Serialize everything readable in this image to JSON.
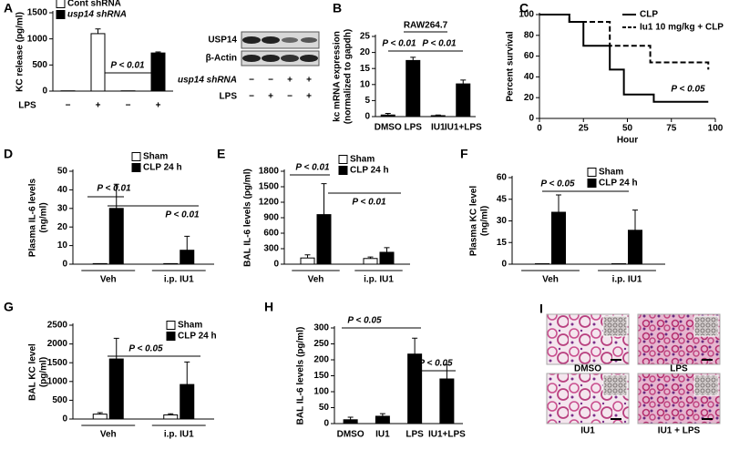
{
  "chart_data": [
    {
      "panel": "A",
      "type": "bar",
      "ylabel": [
        "KC release (pg/ml)"
      ],
      "categories": [
        "−",
        "+",
        "−",
        "+"
      ],
      "x_row_label": "LPS",
      "series": [
        {
          "name": "Cont shRNA",
          "color": "#ffffff",
          "values": [
            5,
            1100,
            null,
            null
          ],
          "errors": [
            null,
            90,
            null,
            null
          ]
        },
        {
          "name": "usp14 shRNA",
          "color": "#000000",
          "values": [
            null,
            null,
            5,
            730
          ],
          "errors": [
            null,
            null,
            null,
            20
          ]
        }
      ],
      "ylim": [
        0,
        1500
      ],
      "yticks": [
        0,
        500,
        1000,
        1500
      ],
      "legend": "upper left",
      "annotations": [
        "P < 0.01"
      ]
    },
    {
      "panel": "B",
      "type": "bar",
      "title": "RAW264.7",
      "ylabel": [
        "kc mRNA expression",
        "(normalized to gapdh)"
      ],
      "categories": [
        "DMSO",
        "LPS",
        "IU1",
        "IU1+LPS"
      ],
      "values": [
        0.5,
        17.5,
        0.3,
        10.2
      ],
      "errors": [
        0.5,
        1,
        0.2,
        1.2
      ],
      "color": "#000000",
      "ylim": [
        0,
        25
      ],
      "yticks": [
        0,
        5,
        10,
        15,
        20,
        25
      ],
      "annotations": [
        "P < 0.01",
        "P < 0.01"
      ]
    },
    {
      "panel": "C",
      "type": "line",
      "xlabel": "Hour",
      "ylabel": [
        "Percent survival"
      ],
      "series": [
        {
          "name": "CLP",
          "color": "#000000",
          "dash": false,
          "x": [
            0,
            17,
            17,
            25,
            25,
            40,
            40,
            48,
            48,
            65,
            65,
            96
          ],
          "values": [
            100,
            100,
            93,
            93,
            70,
            70,
            47,
            47,
            23,
            23,
            16,
            16
          ]
        },
        {
          "name": "Iu1 10 mg/kg + CLP",
          "color": "#000000",
          "dash": true,
          "x": [
            0,
            17,
            17,
            40,
            40,
            63,
            63,
            96,
            96
          ],
          "values": [
            100,
            100,
            93,
            93,
            70,
            70,
            54,
            54,
            47
          ]
        }
      ],
      "xlim": [
        0,
        100
      ],
      "xticks": [
        0,
        25,
        50,
        75,
        100
      ],
      "ylim": [
        0,
        100
      ],
      "yticks": [
        0,
        20,
        40,
        60,
        80,
        100
      ],
      "legend": "upper right",
      "annotations": [
        "P < 0.05"
      ]
    },
    {
      "panel": "D",
      "type": "bar",
      "ylabel": [
        "Plasma IL-6 levels",
        "(ng/ml)"
      ],
      "categories": [
        "Veh",
        "i.p. IU1"
      ],
      "series": [
        {
          "name": "Sham",
          "color": "#ffffff",
          "values": [
            0.3,
            0.3
          ],
          "errors": [
            null,
            null
          ]
        },
        {
          "name": "CLP 24 h",
          "color": "#000000",
          "values": [
            30,
            7.5
          ],
          "errors": [
            13,
            7.5
          ]
        }
      ],
      "ylim": [
        0,
        50
      ],
      "yticks": [
        0,
        10,
        20,
        30,
        40,
        50
      ],
      "legend": "upper right",
      "annotations": [
        "P < 0.01",
        "P < 0.01"
      ]
    },
    {
      "panel": "E",
      "type": "bar",
      "ylabel": [
        "BAL IL-6 levels (pg/ml)"
      ],
      "categories": [
        "Veh",
        "i.p. IU1"
      ],
      "series": [
        {
          "name": "Sham",
          "color": "#ffffff",
          "values": [
            120,
            110
          ],
          "errors": [
            60,
            30
          ]
        },
        {
          "name": "CLP 24 h",
          "color": "#000000",
          "values": [
            960,
            230
          ],
          "errors": [
            600,
            90
          ]
        }
      ],
      "ylim": [
        0,
        1800
      ],
      "yticks": [
        0,
        300,
        600,
        900,
        1200,
        1500,
        1800
      ],
      "legend": "upper right",
      "annotations": [
        "P < 0.01",
        "P < 0.01"
      ]
    },
    {
      "panel": "F",
      "type": "bar",
      "ylabel": [
        "Plasma KC level",
        "(ng/ml)"
      ],
      "categories": [
        "Veh",
        "i.p. IU1"
      ],
      "series": [
        {
          "name": "Sham",
          "color": "#ffffff",
          "values": [
            0.3,
            0.3
          ],
          "errors": [
            null,
            null
          ]
        },
        {
          "name": "CLP 24 h",
          "color": "#000000",
          "values": [
            36,
            23.5
          ],
          "errors": [
            12,
            14
          ]
        }
      ],
      "ylim": [
        0,
        60
      ],
      "yticks": [
        0,
        15,
        30,
        45,
        60
      ],
      "legend": "upper right",
      "annotations": [
        "P < 0.05"
      ]
    },
    {
      "panel": "G",
      "type": "bar",
      "ylabel": [
        "BAL KC level",
        "(pg/ml)"
      ],
      "categories": [
        "Veh",
        "i.p. IU1"
      ],
      "series": [
        {
          "name": "Sham",
          "color": "#ffffff",
          "values": [
            130,
            110
          ],
          "errors": [
            40,
            30
          ]
        },
        {
          "name": "CLP 24 h",
          "color": "#000000",
          "values": [
            1600,
            920
          ],
          "errors": [
            550,
            600
          ]
        }
      ],
      "ylim": [
        0,
        2500
      ],
      "yticks": [
        0,
        500,
        1000,
        1500,
        2000,
        2500
      ],
      "legend": "upper right",
      "annotations": [
        "P < 0.05"
      ]
    },
    {
      "panel": "H",
      "type": "bar",
      "ylabel": [
        "BAL IL-6 levels (pg/ml)"
      ],
      "categories": [
        "DMSO",
        "IU1",
        "LPS",
        "IU1+LPS"
      ],
      "values": [
        12,
        23,
        218,
        140
      ],
      "errors": [
        8,
        8,
        50,
        45
      ],
      "color": "#000000",
      "ylim": [
        0,
        300
      ],
      "yticks": [
        0,
        50,
        100,
        150,
        200,
        250,
        300
      ],
      "annotations": [
        "P < 0.05",
        "P < 0.05"
      ]
    }
  ],
  "blot": {
    "rows": [
      "USP14",
      "β-Actin"
    ],
    "conditions": [
      {
        "label": "usp14 shRNA",
        "signs": [
          "−",
          "−",
          "+",
          "+"
        ]
      },
      {
        "label": "LPS",
        "signs": [
          "−",
          "+",
          "−",
          "+"
        ]
      }
    ]
  },
  "histology": {
    "panel": "I",
    "labels": [
      "DMSO",
      "LPS",
      "IU1",
      "IU1 + LPS"
    ]
  }
}
